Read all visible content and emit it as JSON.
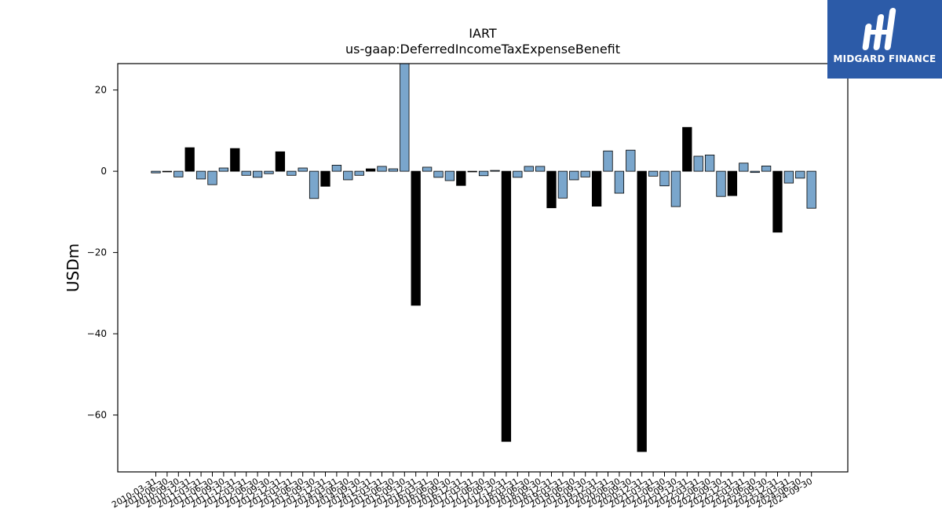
{
  "chart_data": {
    "type": "bar",
    "title": "IART",
    "subtitle": "us-gaap:DeferredIncomeTaxExpenseBenefit",
    "xlabel": "",
    "ylabel": "USDm",
    "ylim": [
      -74,
      26.5
    ],
    "yticks": [
      20,
      0,
      -20,
      -40,
      -60
    ],
    "ytick_labels": [
      "20",
      "0",
      "−20",
      "−40",
      "−60"
    ],
    "colors": {
      "quarter": "#7aa6cc",
      "annual": "#000000",
      "edge": "#000000"
    },
    "categories": [
      "2010-03-31",
      "2010-06-30",
      "2010-09-30",
      "2010-12-31",
      "2011-03-31",
      "2011-06-30",
      "2011-09-30",
      "2011-12-31",
      "2012-03-31",
      "2012-06-30",
      "2012-09-30",
      "2012-12-31",
      "2013-03-31",
      "2013-06-30",
      "2013-09-30",
      "2013-12-31",
      "2014-03-31",
      "2014-06-30",
      "2014-09-30",
      "2014-12-31",
      "2015-03-31",
      "2015-06-30",
      "2015-09-30",
      "2015-12-31",
      "2016-03-31",
      "2016-06-30",
      "2016-09-30",
      "2016-12-31",
      "2017-03-31",
      "2017-06-30",
      "2017-09-30",
      "2017-12-31",
      "2018-03-31",
      "2018-06-30",
      "2018-09-30",
      "2018-12-31",
      "2019-03-31",
      "2019-06-30",
      "2019-09-30",
      "2019-12-31",
      "2020-03-31",
      "2020-06-30",
      "2020-09-30",
      "2020-12-31",
      "2021-03-31",
      "2021-06-30",
      "2021-09-30",
      "2021-12-31",
      "2022-03-31",
      "2022-06-30",
      "2022-09-30",
      "2022-12-31",
      "2023-03-31",
      "2023-06-30",
      "2023-09-30",
      "2023-12-31",
      "2024-03-31",
      "2024-06-30",
      "2024-09-30"
    ],
    "values": [
      -0.4,
      -0.1,
      -1.4,
      5.8,
      -1.9,
      -3.3,
      0.8,
      5.6,
      -1.0,
      -1.5,
      -0.6,
      4.8,
      -1.0,
      0.8,
      -6.7,
      -3.7,
      1.5,
      -2.1,
      -1.0,
      0.6,
      1.2,
      0.6,
      26.5,
      -33.0,
      1.0,
      -1.5,
      -2.3,
      -3.5,
      -0.1,
      -1.1,
      0.2,
      -66.5,
      -1.5,
      1.2,
      1.2,
      -9.0,
      -6.6,
      -2.1,
      -1.4,
      -8.6,
      5.0,
      -5.4,
      5.2,
      -69.0,
      -1.2,
      -3.6,
      -8.7,
      10.8,
      3.7,
      4.0,
      -6.2,
      -6.0,
      2.0,
      -0.3,
      1.3,
      -15.0,
      -2.9,
      -1.7,
      -9.1
    ],
    "annual": [
      false,
      false,
      false,
      true,
      false,
      false,
      false,
      true,
      false,
      false,
      false,
      true,
      false,
      false,
      false,
      true,
      false,
      false,
      false,
      true,
      false,
      false,
      false,
      true,
      false,
      false,
      false,
      true,
      false,
      false,
      false,
      true,
      false,
      false,
      false,
      true,
      false,
      false,
      false,
      true,
      false,
      false,
      false,
      true,
      false,
      false,
      false,
      true,
      false,
      false,
      false,
      true,
      false,
      false,
      false,
      true,
      false,
      false,
      false
    ]
  },
  "logo": {
    "text": "MIDGARD FINANCE",
    "icon": "midgard-logo-icon"
  }
}
